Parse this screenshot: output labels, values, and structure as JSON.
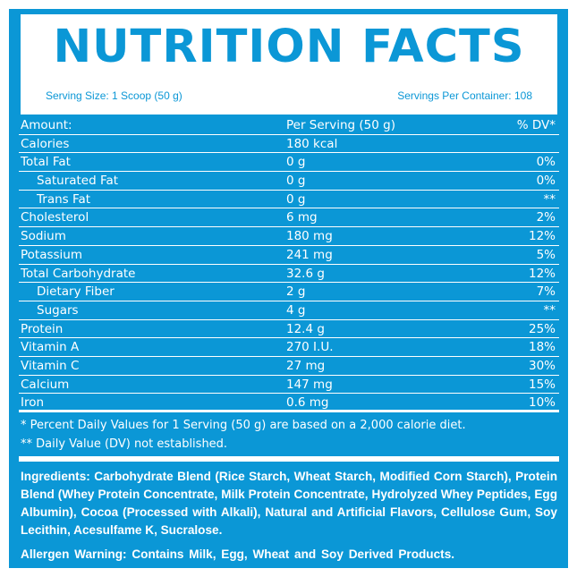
{
  "header": {
    "title": "NUTRITION FACTS",
    "serving_size": "Serving Size: 1  Scoop (50 g)",
    "servings_per_container": "Servings Per Container: 108"
  },
  "table": {
    "head": {
      "name": "Amount:",
      "amount": "Per Serving (50 g)",
      "dv": "% DV*"
    },
    "rows": [
      {
        "name": "Calories",
        "amount": "180 kcal",
        "dv": ""
      },
      {
        "name": "Total Fat",
        "amount": "0 g",
        "dv": "0%"
      },
      {
        "name": "Saturated Fat",
        "amount": "0 g",
        "dv": "0%"
      },
      {
        "name": "Trans Fat",
        "amount": "0 g",
        "dv": "**"
      },
      {
        "name": "Cholesterol",
        "amount": "6 mg",
        "dv": "2%"
      },
      {
        "name": "Sodium",
        "amount": "180 mg",
        "dv": "12%"
      },
      {
        "name": "Potassium",
        "amount": "241 mg",
        "dv": "5%"
      },
      {
        "name": "Total Carbohydrate",
        "amount": "32.6 g",
        "dv": "12%"
      },
      {
        "name": "Dietary Fiber",
        "amount": "2 g",
        "dv": "7%"
      },
      {
        "name": "Sugars",
        "amount": "4 g",
        "dv": "**"
      },
      {
        "name": "Protein",
        "amount": "12.4 g",
        "dv": "25%"
      },
      {
        "name": "Vitamin A",
        "amount": "270 I.U.",
        "dv": "18%"
      },
      {
        "name": "Vitamin C",
        "amount": "27 mg",
        "dv": "30%"
      },
      {
        "name": "Calcium",
        "amount": "147 mg",
        "dv": "15%"
      },
      {
        "name": "Iron",
        "amount": "0.6 mg",
        "dv": "10%"
      }
    ]
  },
  "footnotes": {
    "dv_note": "* Percent Daily Values for 1 Serving (50 g) are based on a 2,000 calorie diet.",
    "not_established": "** Daily Value (DV) not established."
  },
  "ingredients": "Ingredients: Carbohydrate Blend (Rice Starch, Wheat Starch, Modified Corn Starch), Protein Blend (Whey Protein Concentrate, Milk Protein Concentrate, Hydrolyzed Whey Peptides, Egg Albumin), Cocoa (Processed with Alkali), Natural and Artificial Flavors, Cellulose Gum, Soy Lecithin, Acesulfame K, Sucralose.",
  "allergen_warning": "Allergen Warning: Contains Milk, Egg, Wheat and Soy Derived Products.",
  "colors": {
    "brand_blue": "#0b97d6",
    "text": "#ffffff"
  }
}
